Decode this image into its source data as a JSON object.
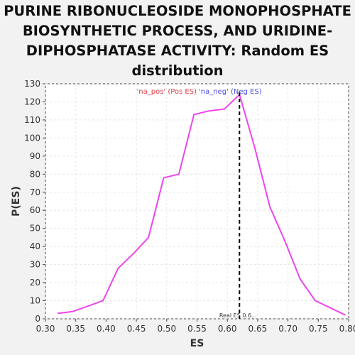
{
  "chart_data": {
    "type": "line",
    "title_lines": [
      "PURINE RIBONUCLEOSIDE MONOPHOSPHATE",
      "BIOSYNTHETIC PROCESS, AND URIDINE-",
      "DIPHOSPHATASE ACTIVITY: Random ES",
      "distribution"
    ],
    "xlabel": "ES",
    "ylabel": "P(ES)",
    "xlim": [
      0.3,
      0.8
    ],
    "ylim": [
      0,
      130
    ],
    "x_ticks": [
      "0.30",
      "0.35",
      "0.40",
      "0.45",
      "0.50",
      "0.55",
      "0.60",
      "0.65",
      "0.70",
      "0.75",
      "0.80"
    ],
    "y_ticks": [
      "0",
      "10",
      "20",
      "30",
      "40",
      "50",
      "60",
      "70",
      "80",
      "90",
      "100",
      "110",
      "120",
      "130"
    ],
    "grid": true,
    "legend": {
      "pos_text": "'na_pos' (Pos ES)",
      "neg_text": "'na_neg' (Neg ES)",
      "placement": "top-center"
    },
    "series": [
      {
        "color": "#ee44ee",
        "x": [
          0.32,
          0.345,
          0.37,
          0.395,
          0.42,
          0.445,
          0.47,
          0.495,
          0.52,
          0.545,
          0.57,
          0.595,
          0.62,
          0.645,
          0.67,
          0.695,
          0.72,
          0.745,
          0.77,
          0.795
        ],
        "y": [
          3,
          4,
          7,
          10,
          28,
          36,
          45,
          78,
          80,
          113,
          115,
          116,
          124,
          95,
          62,
          43,
          22,
          10,
          6,
          2
        ]
      }
    ],
    "real_es": {
      "value": 0.62,
      "label": "Real ES 0.6..."
    }
  }
}
